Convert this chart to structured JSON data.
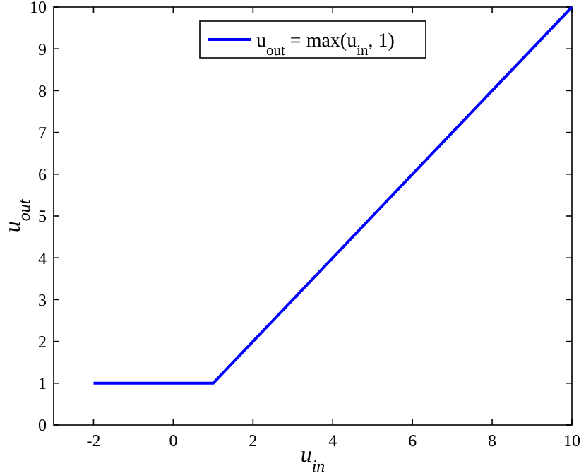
{
  "chart_data": {
    "type": "line",
    "xlabel": "u$_{in}$",
    "ylabel": "u$_{out}$",
    "xlim": [
      -3,
      10
    ],
    "ylim": [
      0,
      10
    ],
    "xticks": [
      -2,
      0,
      2,
      4,
      6,
      8,
      10
    ],
    "yticks": [
      0,
      1,
      2,
      3,
      4,
      5,
      6,
      7,
      8,
      9,
      10
    ],
    "x": [
      -2,
      1,
      10
    ],
    "series": [
      {
        "name": "u$_{out}$ = max(u$_{in}$, 1)",
        "color": "#0000ff",
        "values": [
          1,
          1,
          10
        ]
      }
    ],
    "legend": "top",
    "grid": false,
    "line_style": "solid",
    "marker": "none"
  }
}
